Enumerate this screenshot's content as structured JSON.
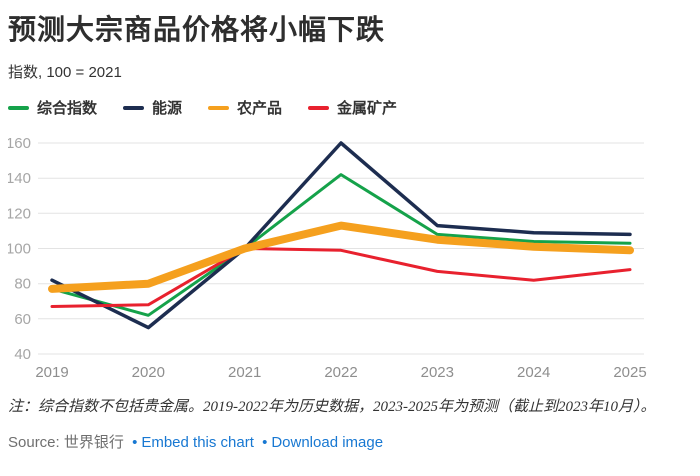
{
  "header": {
    "title": "预测大宗商品价格将小幅下跌",
    "subtitle": "指数, 100 = 2021"
  },
  "legend": {
    "items": [
      {
        "label": "综合指数",
        "color": "#15a24a"
      },
      {
        "label": "能源",
        "color": "#1d2d50"
      },
      {
        "label": "农产品",
        "color": "#f5a01e"
      },
      {
        "label": "金属矿产",
        "color": "#e8212e"
      }
    ]
  },
  "chart_data": {
    "type": "line",
    "title": "预测大宗商品价格将小幅下跌",
    "subtitle": "指数, 100 = 2021",
    "x": [
      2019,
      2020,
      2021,
      2022,
      2023,
      2024,
      2025
    ],
    "series": [
      {
        "name": "综合指数",
        "color": "#15a24a",
        "width": 3,
        "values": [
          77,
          62,
          100,
          142,
          108,
          104,
          103
        ]
      },
      {
        "name": "能源",
        "color": "#1d2d50",
        "width": 3.5,
        "values": [
          82,
          55,
          100,
          160,
          113,
          109,
          108
        ]
      },
      {
        "name": "金属矿产",
        "color": "#e8212e",
        "width": 3,
        "values": [
          67,
          68,
          100,
          99,
          87,
          82,
          88
        ]
      },
      {
        "name": "农产品",
        "color": "#f5a01e",
        "width": 8,
        "values": [
          77,
          80,
          100,
          113,
          105,
          101,
          99
        ]
      }
    ],
    "ylim": [
      40,
      160
    ],
    "yticks": [
      40,
      60,
      80,
      100,
      120,
      140,
      160
    ],
    "grid": true,
    "legend_position": "top",
    "colors": {
      "grid": "#e3e3e3",
      "y_tick_label": "#a6a6a6",
      "x_tick_label": "#8e8e8e",
      "link_blue": "#1878d2"
    }
  },
  "note": "注：综合指数不包括贵金属。2019-2022年为历史数据，2023-2025年为预测（截止到2023年10月）。",
  "source": {
    "label": "Source:",
    "name": "世界银行",
    "separator": "•",
    "embed_link": "Embed this chart",
    "download_link": "Download image"
  }
}
